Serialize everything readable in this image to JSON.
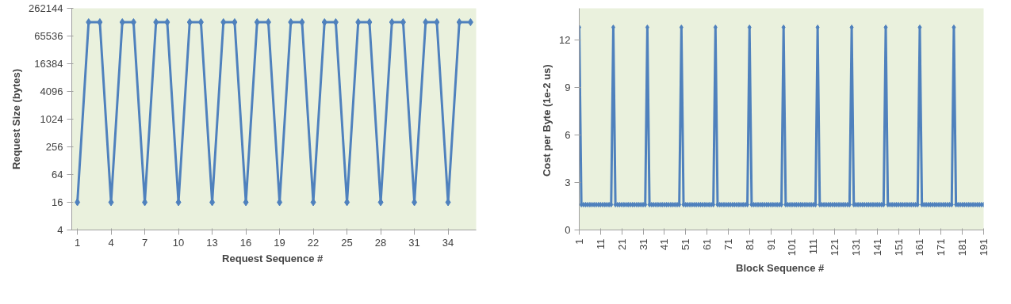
{
  "chart_data": [
    {
      "type": "line",
      "xlabel": "Request  Sequence #",
      "ylabel": "Request Size (bytes)",
      "log": "y",
      "marker": "diamond",
      "line_style": "solid",
      "grid": false,
      "x": [
        1,
        2,
        3,
        4,
        5,
        6,
        7,
        8,
        9,
        10,
        11,
        12,
        13,
        14,
        15,
        16,
        17,
        18,
        19,
        20,
        21,
        22,
        23,
        24,
        25,
        26,
        27,
        28,
        29,
        30,
        31,
        32,
        33,
        34,
        35,
        36
      ],
      "xlim": [
        0.5,
        36.5
      ],
      "xticks": [
        1,
        4,
        7,
        10,
        13,
        16,
        19,
        22,
        25,
        28,
        31,
        34
      ],
      "ylim": [
        4,
        262144
      ],
      "yticks": [
        4,
        16,
        64,
        256,
        1024,
        4096,
        16384,
        65536,
        262144
      ],
      "series": [
        {
          "color": "#4f81bd",
          "values": [
            16,
            131072,
            131072,
            16,
            131072,
            131072,
            16,
            131072,
            131072,
            16,
            131072,
            131072,
            16,
            131072,
            131072,
            16,
            131072,
            131072,
            16,
            131072,
            131072,
            16,
            131072,
            131072,
            16,
            131072,
            131072,
            16,
            131072,
            131072,
            16,
            131072,
            131072,
            16,
            131072,
            131072
          ]
        }
      ]
    },
    {
      "type": "line",
      "xlabel": "Block  Sequence #",
      "ylabel": "Cost per Byte (1e-2  us)",
      "marker": "diamond",
      "line_style": "solid",
      "grid": false,
      "x": [
        1,
        2,
        3,
        4,
        5,
        6,
        7,
        8,
        9,
        10,
        11,
        12,
        13,
        14,
        15,
        16,
        17,
        18,
        19,
        20,
        21,
        22,
        23,
        24,
        25,
        26,
        27,
        28,
        29,
        30,
        31,
        32,
        33,
        34,
        35,
        36,
        37,
        38,
        39,
        40,
        41,
        42,
        43,
        44,
        45,
        46,
        47,
        48,
        49,
        50,
        51,
        52,
        53,
        54,
        55,
        56,
        57,
        58,
        59,
        60,
        61,
        62,
        63,
        64,
        65,
        66,
        67,
        68,
        69,
        70,
        71,
        72,
        73,
        74,
        75,
        76,
        77,
        78,
        79,
        80,
        81,
        82,
        83,
        84,
        85,
        86,
        87,
        88,
        89,
        90,
        91,
        92,
        93,
        94,
        95,
        96,
        97,
        98,
        99,
        100,
        101,
        102,
        103,
        104,
        105,
        106,
        107,
        108,
        109,
        110,
        111,
        112,
        113,
        114,
        115,
        116,
        117,
        118,
        119,
        120,
        121,
        122,
        123,
        124,
        125,
        126,
        127,
        128,
        129,
        130,
        131,
        132,
        133,
        134,
        135,
        136,
        137,
        138,
        139,
        140,
        141,
        142,
        143,
        144,
        145,
        146,
        147,
        148,
        149,
        150,
        151,
        152,
        153,
        154,
        155,
        156,
        157,
        158,
        159,
        160,
        161,
        162,
        163,
        164,
        165,
        166,
        167,
        168,
        169,
        170,
        171,
        172,
        173,
        174,
        175,
        176,
        177,
        178,
        179,
        180,
        181,
        182,
        183,
        184,
        185,
        186,
        187,
        188,
        189,
        190,
        191
      ],
      "xlim": [
        1,
        191
      ],
      "xticks": [
        1,
        11,
        21,
        31,
        41,
        51,
        61,
        71,
        81,
        91,
        101,
        111,
        121,
        131,
        141,
        151,
        161,
        171,
        181,
        191
      ],
      "ylim": [
        0,
        14
      ],
      "yticks": [
        0,
        3,
        6,
        9,
        12
      ],
      "series": [
        {
          "color": "#4f81bd",
          "values": [
            12.8,
            1.6,
            1.6,
            1.6,
            1.6,
            1.6,
            1.6,
            1.6,
            1.6,
            1.6,
            1.6,
            1.6,
            1.6,
            1.6,
            1.6,
            1.6,
            12.8,
            1.6,
            1.6,
            1.6,
            1.6,
            1.6,
            1.6,
            1.6,
            1.6,
            1.6,
            1.6,
            1.6,
            1.6,
            1.6,
            1.6,
            1.6,
            12.8,
            1.6,
            1.6,
            1.6,
            1.6,
            1.6,
            1.6,
            1.6,
            1.6,
            1.6,
            1.6,
            1.6,
            1.6,
            1.6,
            1.6,
            1.6,
            12.8,
            1.6,
            1.6,
            1.6,
            1.6,
            1.6,
            1.6,
            1.6,
            1.6,
            1.6,
            1.6,
            1.6,
            1.6,
            1.6,
            1.6,
            1.6,
            12.8,
            1.6,
            1.6,
            1.6,
            1.6,
            1.6,
            1.6,
            1.6,
            1.6,
            1.6,
            1.6,
            1.6,
            1.6,
            1.6,
            1.6,
            1.6,
            12.8,
            1.6,
            1.6,
            1.6,
            1.6,
            1.6,
            1.6,
            1.6,
            1.6,
            1.6,
            1.6,
            1.6,
            1.6,
            1.6,
            1.6,
            1.6,
            12.8,
            1.6,
            1.6,
            1.6,
            1.6,
            1.6,
            1.6,
            1.6,
            1.6,
            1.6,
            1.6,
            1.6,
            1.6,
            1.6,
            1.6,
            1.6,
            12.8,
            1.6,
            1.6,
            1.6,
            1.6,
            1.6,
            1.6,
            1.6,
            1.6,
            1.6,
            1.6,
            1.6,
            1.6,
            1.6,
            1.6,
            1.6,
            12.8,
            1.6,
            1.6,
            1.6,
            1.6,
            1.6,
            1.6,
            1.6,
            1.6,
            1.6,
            1.6,
            1.6,
            1.6,
            1.6,
            1.6,
            1.6,
            12.8,
            1.6,
            1.6,
            1.6,
            1.6,
            1.6,
            1.6,
            1.6,
            1.6,
            1.6,
            1.6,
            1.6,
            1.6,
            1.6,
            1.6,
            1.6,
            12.8,
            1.6,
            1.6,
            1.6,
            1.6,
            1.6,
            1.6,
            1.6,
            1.6,
            1.6,
            1.6,
            1.6,
            1.6,
            1.6,
            1.6,
            1.6,
            12.8,
            1.6,
            1.6,
            1.6,
            1.6,
            1.6,
            1.6,
            1.6,
            1.6,
            1.6,
            1.6,
            1.6,
            1.6,
            1.6,
            1.6
          ]
        }
      ]
    }
  ]
}
